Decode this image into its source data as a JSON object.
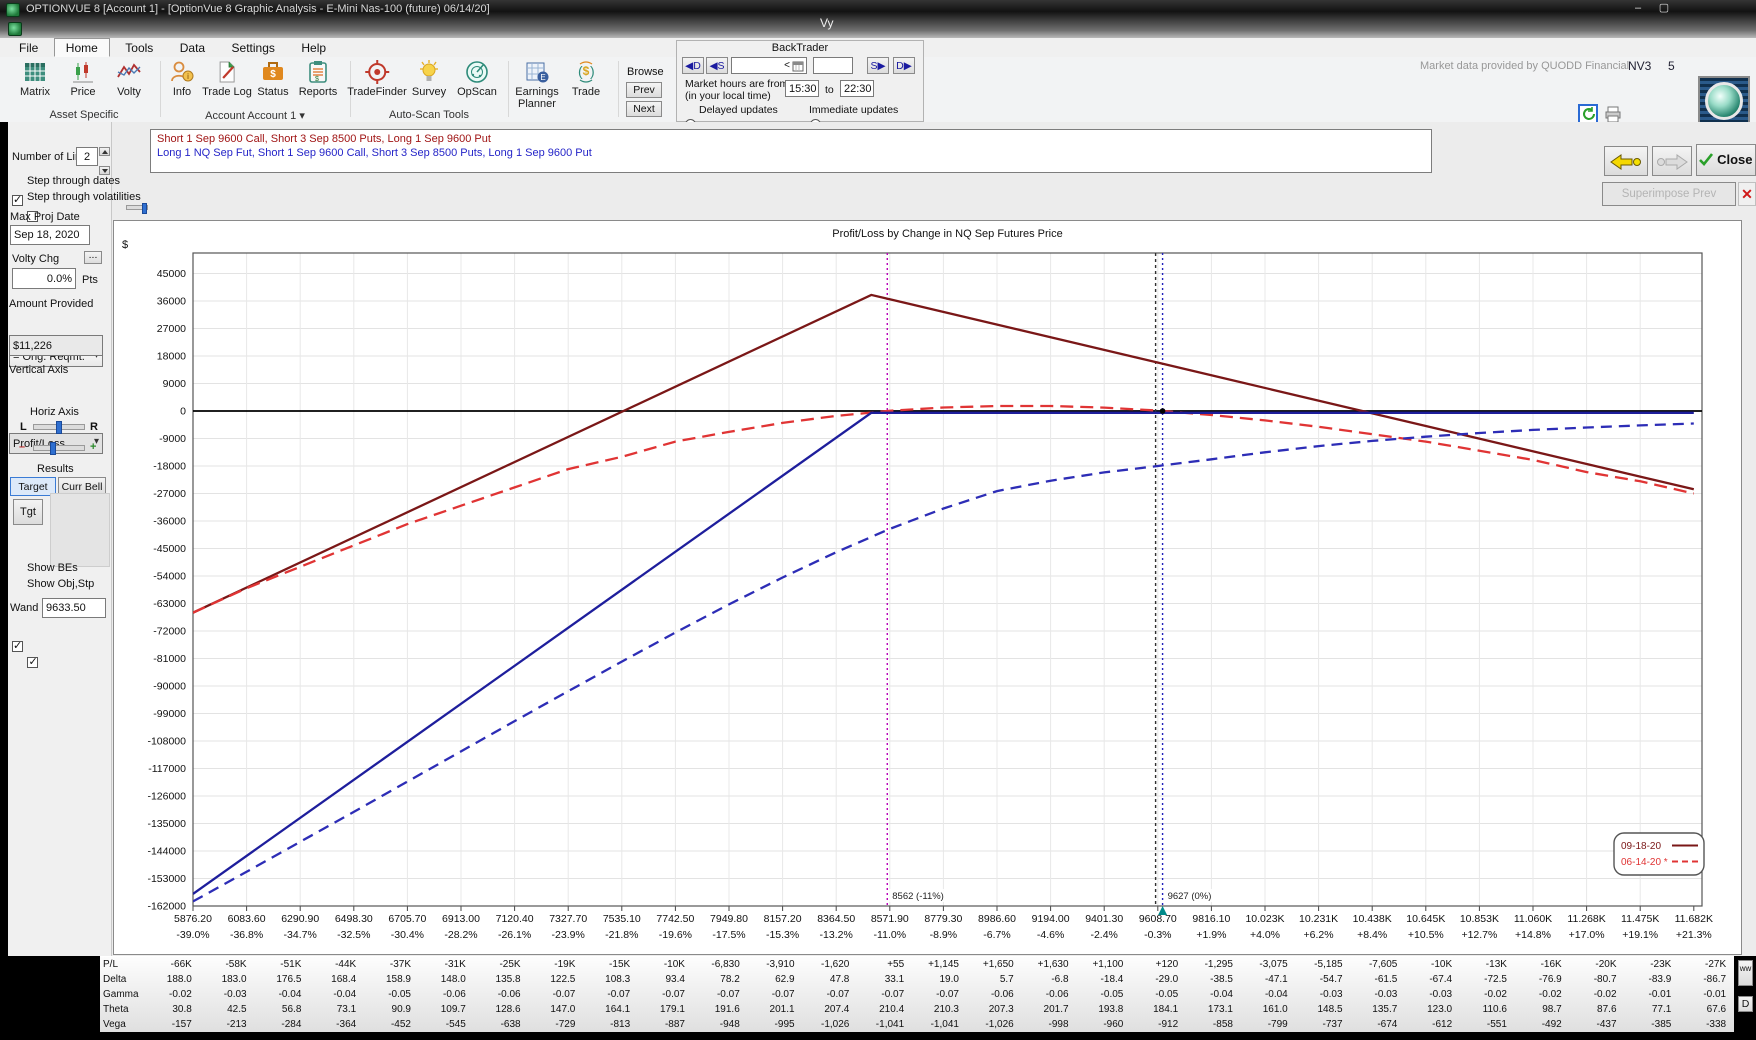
{
  "window": {
    "title": "OPTIONVUE 8   [Account 1] - [OptionVue 8 Graphic Analysis - E-Mini Nas-100 (future)  06/14/20]",
    "mdi_title": "Vy",
    "minimize": "–",
    "maximize": "▢"
  },
  "menu": {
    "items": [
      "File",
      "Home",
      "Tools",
      "Data",
      "Settings",
      "Help"
    ]
  },
  "ribbon": {
    "buttons": {
      "matrix": "Matrix",
      "price": "Price",
      "volty": "Volty",
      "info": "Info",
      "trade_log": "Trade Log",
      "status": "Status",
      "reports": "Reports",
      "tradefinder": "TradeFinder",
      "survey": "Survey",
      "opscan": "OpScan",
      "earnings_planner": "Earnings Planner",
      "trade": "Trade"
    },
    "group_labels": {
      "asset": "Asset Specific",
      "account": "Account Account 1 ▾",
      "autoscan": "Auto-Scan Tools"
    },
    "browse": {
      "label": "Browse",
      "prev": "Prev",
      "next": "Next"
    },
    "backtrader": {
      "title": "BackTrader",
      "day_back": "◀D",
      "step_back": "◀S",
      "less": "<",
      "step_fwd": "S▶",
      "day_fwd": "D▶",
      "hours_line1": "Market hours are from",
      "hours_line2": "(in your local time)",
      "from_time": "15:30",
      "to_word": "to",
      "to_time": "22:30",
      "delayed": "Delayed updates",
      "immediate": "Immediate updates"
    },
    "market_note": "Market data provided by QUODD Financial",
    "nv": "NV3",
    "num": "5"
  },
  "toolbar_right": {
    "close": "Close",
    "superimpose": "Superimpose Prev",
    "close_x": "✕"
  },
  "strategies": {
    "line1": "Short 1 Sep 9600 Call, Short 3 Sep 8500 Puts, Long 1 Sep 9600 Put",
    "line2": "Long 1 NQ Sep Fut, Short 1 Sep 9600 Call, Short 3 Sep 8500 Puts, Long 1 Sep 9600 Put"
  },
  "sidebar": {
    "number_of_lines_label": "Number of Lines",
    "number_of_lines": "2",
    "step_dates": "Step through dates",
    "step_vols": "Step through volatilities",
    "max_proj_label": "Max Proj Date",
    "max_proj_date": "Sep 18, 2020",
    "volty_chg_label": "Volty Chg",
    "volty_chg": "0.0%",
    "pts": "Pts",
    "ellipsis": "...",
    "amount_label": "Amount Provided",
    "amount_mode": "= Orig. Reqmt.",
    "amount_value": "$11,226",
    "vaxis_label": "Vertical Axis",
    "vaxis_value": "Profit/Loss",
    "haxis_label": "Horiz Axis",
    "l": "L",
    "r": "R",
    "minus": "–",
    "plus": "+",
    "results_label": "Results",
    "target": "Target",
    "curr_bell": "Curr Bell",
    "tgt": "Tgt",
    "show_bes": "Show BEs",
    "show_obj": "Show Obj,Stp",
    "wand_label": "Wand",
    "wand_value": "9633.50"
  },
  "chart_data": {
    "type": "line",
    "title": "Profit/Loss by Change in NQ Sep Futures Price",
    "y_unit": "$",
    "ylim": [
      -162000,
      45000
    ],
    "grid": true,
    "x_values": [
      5876.2,
      6083.6,
      6290.9,
      6498.3,
      6705.7,
      6913.0,
      7120.4,
      7327.7,
      7535.1,
      7742.5,
      7949.8,
      8157.2,
      8364.5,
      8571.9,
      8779.3,
      8986.6,
      9194.0,
      9401.3,
      9608.7,
      9816.1,
      10023,
      10231,
      10438,
      10645,
      10853,
      11060,
      11268,
      11475,
      11682
    ],
    "x_ticks_price": [
      "5876.20",
      "6083.60",
      "6290.90",
      "6498.30",
      "6705.70",
      "6913.00",
      "7120.40",
      "7327.70",
      "7535.10",
      "7742.50",
      "7949.80",
      "8157.20",
      "8364.50",
      "8571.90",
      "8779.30",
      "8986.60",
      "9194.00",
      "9401.30",
      "9608.70",
      "9816.10",
      "10.023K",
      "10.231K",
      "10.438K",
      "10.645K",
      "10.853K",
      "11.060K",
      "11.268K",
      "11.475K",
      "11.682K"
    ],
    "x_ticks_pct": [
      "-39.0%",
      "-36.8%",
      "-34.7%",
      "-32.5%",
      "-30.4%",
      "-28.2%",
      "-26.1%",
      "-23.9%",
      "-21.8%",
      "-19.6%",
      "-17.5%",
      "-15.3%",
      "-13.2%",
      "-11.0%",
      "-8.9%",
      "-6.7%",
      "-4.6%",
      "-2.4%",
      "-0.3%",
      "+1.9%",
      "+4.0%",
      "+6.2%",
      "+8.4%",
      "+10.5%",
      "+12.7%",
      "+14.8%",
      "+17.0%",
      "+19.1%",
      "+21.3%"
    ],
    "y_ticks": [
      "45000",
      "36000",
      "27000",
      "18000",
      "9000",
      "0",
      "-9000",
      "-18000",
      "-27000",
      "-36000",
      "-45000",
      "-54000",
      "-63000",
      "-72000",
      "-81000",
      "-90000",
      "-99000",
      "-108000",
      "-117000",
      "-126000",
      "-135000",
      "-144000",
      "-153000",
      "-162000"
    ],
    "series": [
      {
        "name": "line1-expiration-09-18-20",
        "color": "#7a1717",
        "dash": "none",
        "points": [
          [
            5876.2,
            -66000
          ],
          [
            8500,
            38000
          ],
          [
            11682,
            -25640
          ]
        ]
      },
      {
        "name": "line1-current-06-14-20",
        "color": "#e03434",
        "dash": "13 7",
        "values": [
          -66000,
          -58000,
          -51000,
          -44000,
          -37000,
          -31000,
          -25000,
          -19000,
          -15000,
          -10000,
          -6830,
          -3910,
          -1620,
          55,
          1145,
          1650,
          1630,
          1100,
          120,
          -1295,
          -3075,
          -5185,
          -7605,
          -10000,
          -13000,
          -16000,
          -20000,
          -23000,
          -27000
        ]
      },
      {
        "name": "line2-expiration-09-18-20",
        "color": "#1e1e9c",
        "dash": "none",
        "points": [
          [
            5876.2,
            -158028
          ],
          [
            8500,
            -600
          ],
          [
            11682,
            -600
          ]
        ]
      },
      {
        "name": "line2-current-06-14-20",
        "color": "#2d2db6",
        "dash": "11 7",
        "values": [
          -160500,
          -150800,
          -141000,
          -131200,
          -121300,
          -111400,
          -101500,
          -91700,
          -82000,
          -72500,
          -63300,
          -54500,
          -46200,
          -38600,
          -31900,
          -26200,
          -22800,
          -20100,
          -18000,
          -15800,
          -13500,
          -11500,
          -9800,
          -8400,
          -7200,
          -6200,
          -5400,
          -4700,
          -4100
        ]
      }
    ],
    "zero_line": 0,
    "vlines": [
      {
        "price": 8562,
        "label": "8562 (-11%)",
        "color": "#b800b8",
        "style": "2 3"
      },
      {
        "price": 9600,
        "label": "",
        "color": "#303030",
        "style": "3 3"
      },
      {
        "price": 9627,
        "label": "9627 (0%)",
        "color": "#2222bb",
        "style": "2 3",
        "marker": "#008b8b",
        "dot_at_zero": true
      }
    ],
    "legend": {
      "position": "bottom-right",
      "entries": [
        {
          "label": "09-18-20",
          "color": "#7a1717",
          "dash": "none"
        },
        {
          "label": "06-14-20 *",
          "color": "#e03434",
          "dash": "6 4"
        }
      ]
    }
  },
  "greeks_table": {
    "rows": [
      {
        "label": "P/L",
        "values": [
          "-66K",
          "-58K",
          "-51K",
          "-44K",
          "-37K",
          "-31K",
          "-25K",
          "-19K",
          "-15K",
          "-10K",
          "-6,830",
          "-3,910",
          "-1,620",
          "+55",
          "+1,145",
          "+1,650",
          "+1,630",
          "+1,100",
          "+120",
          "-1,295",
          "-3,075",
          "-5,185",
          "-7,605",
          "-10K",
          "-13K",
          "-16K",
          "-20K",
          "-23K",
          "-27K"
        ]
      },
      {
        "label": "Delta",
        "values": [
          "188.0",
          "183.0",
          "176.5",
          "168.4",
          "158.9",
          "148.0",
          "135.8",
          "122.5",
          "108.3",
          "93.4",
          "78.2",
          "62.9",
          "47.8",
          "33.1",
          "19.0",
          "5.7",
          "-6.8",
          "-18.4",
          "-29.0",
          "-38.5",
          "-47.1",
          "-54.7",
          "-61.5",
          "-67.4",
          "-72.5",
          "-76.9",
          "-80.7",
          "-83.9",
          "-86.7"
        ]
      },
      {
        "label": "Gamma",
        "values": [
          "-0.02",
          "-0.03",
          "-0.04",
          "-0.04",
          "-0.05",
          "-0.06",
          "-0.06",
          "-0.07",
          "-0.07",
          "-0.07",
          "-0.07",
          "-0.07",
          "-0.07",
          "-0.07",
          "-0.07",
          "-0.06",
          "-0.06",
          "-0.05",
          "-0.05",
          "-0.04",
          "-0.04",
          "-0.03",
          "-0.03",
          "-0.03",
          "-0.02",
          "-0.02",
          "-0.02",
          "-0.01",
          "-0.01"
        ]
      },
      {
        "label": "Theta",
        "values": [
          "30.8",
          "42.5",
          "56.8",
          "73.1",
          "90.9",
          "109.7",
          "128.6",
          "147.0",
          "164.1",
          "179.1",
          "191.6",
          "201.1",
          "207.4",
          "210.4",
          "210.3",
          "207.3",
          "201.7",
          "193.8",
          "184.1",
          "173.1",
          "161.0",
          "148.5",
          "135.7",
          "123.0",
          "110.6",
          "98.7",
          "87.6",
          "77.1",
          "67.6"
        ]
      },
      {
        "label": "Vega",
        "values": [
          "-157",
          "-213",
          "-284",
          "-364",
          "-452",
          "-545",
          "-638",
          "-729",
          "-813",
          "-887",
          "-948",
          "-995",
          "-1,026",
          "-1,041",
          "-1,041",
          "-1,026",
          "-998",
          "-960",
          "-912",
          "-858",
          "-799",
          "-737",
          "-674",
          "-612",
          "-551",
          "-492",
          "-437",
          "-385",
          "-338"
        ]
      }
    ],
    "side_buttons": [
      "ww",
      "D"
    ]
  }
}
